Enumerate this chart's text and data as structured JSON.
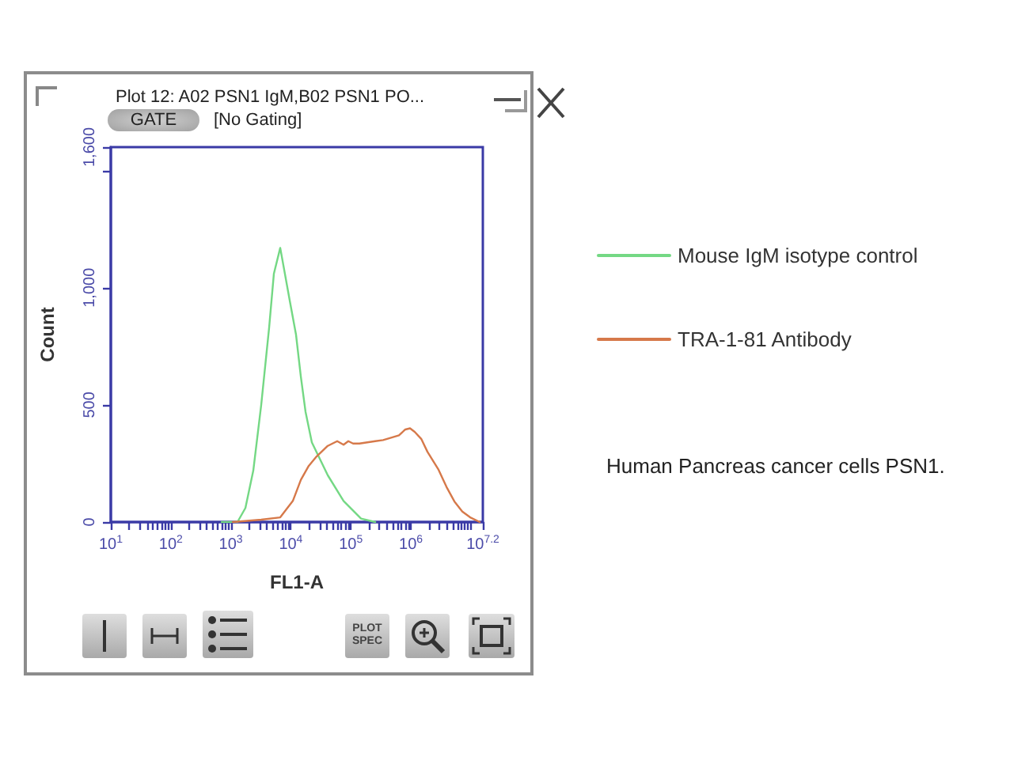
{
  "chart_data": {
    "type": "line",
    "title": "Plot 12: A02 PSN1 IgM,B02 PSN1 PO...",
    "xlabel": "FL1-A",
    "ylabel": "Count",
    "log": "x",
    "legend": "right",
    "xlim": [
      10,
      15848932
    ],
    "xticks": [
      {
        "value": 10,
        "label": "10$^{1}$"
      },
      {
        "value": 20,
        "label": null
      },
      {
        "value": 30,
        "label": null
      },
      {
        "value": 40,
        "label": null
      },
      {
        "value": 50,
        "label": null
      },
      {
        "value": 60,
        "label": null
      },
      {
        "value": 70,
        "label": null
      },
      {
        "value": 80,
        "label": null
      },
      {
        "value": 90,
        "label": null
      },
      {
        "value": 100,
        "label": "10$^{2}$"
      },
      {
        "value": 200,
        "label": null
      },
      {
        "value": 300,
        "label": null
      },
      {
        "value": 400,
        "label": null
      },
      {
        "value": 500,
        "label": null
      },
      {
        "value": 600,
        "label": null
      },
      {
        "value": 700,
        "label": null
      },
      {
        "value": 800,
        "label": null
      },
      {
        "value": 900,
        "label": null
      },
      {
        "value": 1000,
        "label": "10$^{3}$"
      },
      {
        "value": 2000,
        "label": null
      },
      {
        "value": 3000,
        "label": null
      },
      {
        "value": 4000,
        "label": null
      },
      {
        "value": 5000,
        "label": null
      },
      {
        "value": 6000,
        "label": null
      },
      {
        "value": 7000,
        "label": null
      },
      {
        "value": 8000,
        "label": null
      },
      {
        "value": 9000,
        "label": null
      },
      {
        "value": 10000,
        "label": "10$^{4}$"
      },
      {
        "value": 20000,
        "label": null
      },
      {
        "value": 30000,
        "label": null
      },
      {
        "value": 40000,
        "label": null
      },
      {
        "value": 50000,
        "label": null
      },
      {
        "value": 60000,
        "label": null
      },
      {
        "value": 70000,
        "label": null
      },
      {
        "value": 80000,
        "label": null
      },
      {
        "value": 90000,
        "label": null
      },
      {
        "value": 100000,
        "label": "10$^{5}$"
      },
      {
        "value": 200000,
        "label": null
      },
      {
        "value": 300000,
        "label": null
      },
      {
        "value": 400000,
        "label": null
      },
      {
        "value": 500000,
        "label": null
      },
      {
        "value": 600000,
        "label": null
      },
      {
        "value": 700000,
        "label": null
      },
      {
        "value": 800000,
        "label": null
      },
      {
        "value": 900000,
        "label": null
      },
      {
        "value": 1000000,
        "label": "10$^{6}$"
      },
      {
        "value": 2000000,
        "label": null
      },
      {
        "value": 3000000,
        "label": null
      },
      {
        "value": 4000000,
        "label": null
      },
      {
        "value": 5000000,
        "label": null
      },
      {
        "value": 6000000,
        "label": null
      },
      {
        "value": 7000000,
        "label": null
      },
      {
        "value": 8000000,
        "label": null
      },
      {
        "value": 9000000,
        "label": null
      },
      {
        "value": 10000000,
        "label": null
      },
      {
        "value": 15848932,
        "label": "10$^{7.2}$"
      }
    ],
    "ylim": [
      0,
      1600
    ],
    "yticks": [
      0,
      500,
      {
        "value": 1000,
        "label": "1,000"
      },
      {
        "value": 1500,
        "label": null
      },
      {
        "value": 1600,
        "label": "1,600"
      }
    ],
    "series": [
      {
        "name": "Mouse IgM isotype control",
        "color": "#74d884",
        "x": [
          703,
          1290,
          1750,
          2370,
          3210,
          4350,
          5220,
          6660,
          9590,
          12200,
          14700,
          17600,
          22400,
          41200,
          75700,
          148000,
          255000
        ],
        "values": [
          0,
          0,
          60,
          220,
          500,
          830,
          1060,
          1170,
          945,
          800,
          620,
          470,
          340,
          200,
          90,
          15,
          0
        ]
      },
      {
        "name": "TRA-1-81 Antibody",
        "color": "#d6794a",
        "x": [
          1080,
          3210,
          6660,
          10800,
          14700,
          19900,
          26900,
          41200,
          59300,
          75700,
          90800,
          109000,
          139000,
          188000,
          255000,
          345000,
          468000,
          634000,
          809000,
          971000,
          1160000,
          1490000,
          1890000,
          2900000,
          3930000,
          5320000,
          7210000,
          9750000,
          14100000
        ],
        "values": [
          0,
          10,
          20,
          90,
          180,
          240,
          280,
          325,
          345,
          330,
          345,
          335,
          335,
          340,
          345,
          350,
          360,
          370,
          395,
          400,
          385,
          355,
          300,
          223,
          150,
          88,
          45,
          20,
          0
        ]
      }
    ],
    "annotations": [
      "GATE",
      "[No Gating]",
      "PLOT\nSPEC",
      "Human Pancreas cancer cells PSN1."
    ]
  }
}
